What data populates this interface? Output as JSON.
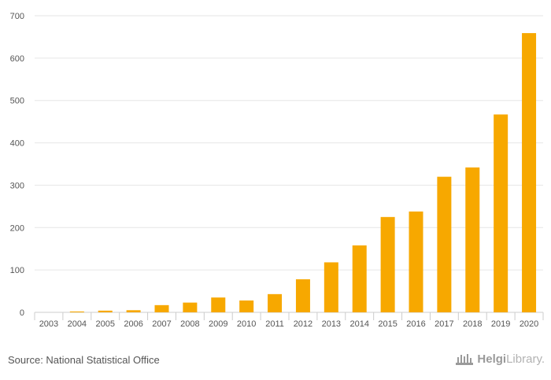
{
  "chart_data": {
    "type": "bar",
    "title": "",
    "xlabel": "",
    "ylabel": "",
    "categories": [
      "2003",
      "2004",
      "2005",
      "2006",
      "2007",
      "2008",
      "2009",
      "2010",
      "2011",
      "2012",
      "2013",
      "2014",
      "2015",
      "2016",
      "2017",
      "2018",
      "2019",
      "2020"
    ],
    "values": [
      0,
      2,
      4,
      5,
      17,
      23,
      35,
      28,
      43,
      78,
      118,
      158,
      225,
      238,
      320,
      342,
      467,
      659
    ],
    "ylim": [
      0,
      700
    ],
    "yticks": [
      0,
      100,
      200,
      300,
      400,
      500,
      600,
      700
    ],
    "grid": true,
    "bar_color": "#f7a800"
  },
  "footer": {
    "source": "Source: National Statistical Office",
    "brand_bold": "Helgi",
    "brand_light": "Library."
  }
}
